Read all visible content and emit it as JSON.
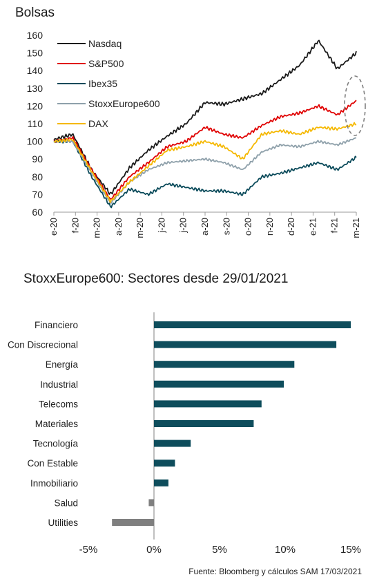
{
  "title_top": "Bolsas",
  "title_bottom": "StoxxEurope600: Sectores desde 29/01/2021",
  "source": "Fuente: Bloomberg y cálculos SAM 17/03/2021",
  "chart_data": [
    {
      "type": "line",
      "title": "Bolsas",
      "ylim": [
        60,
        160
      ],
      "yticks": [
        60,
        70,
        80,
        90,
        100,
        110,
        120,
        130,
        140,
        150,
        160
      ],
      "x_tick_labels": [
        "e-20",
        "f-20",
        "m-20",
        "a-20",
        "m-20",
        "j-20",
        "j-20",
        "a-20",
        "s-20",
        "o-20",
        "n-20",
        "d-20",
        "e-21",
        "f-21",
        "m-21"
      ],
      "legend_position": "top-left",
      "x": [
        "e-20",
        "f-20",
        "m-20",
        "m-20 mid",
        "a-20",
        "m-20",
        "j-20",
        "j-20",
        "a-20",
        "s-20",
        "o-20",
        "n-20",
        "d-20",
        "e-21",
        "f-21",
        "f-21 end",
        "m-21"
      ],
      "series": [
        {
          "name": "Nasdaq",
          "color": "#1a1a1a",
          "values": [
            101,
            104,
            84,
            70,
            85,
            95,
            103,
            110,
            122,
            121,
            124,
            127,
            135,
            143,
            157,
            141,
            150
          ]
        },
        {
          "name": "S&P500",
          "color": "#e00000",
          "values": [
            100,
            102,
            84,
            67,
            80,
            88,
            97,
            100,
            108,
            104,
            102,
            109,
            114,
            116,
            120,
            115,
            123
          ]
        },
        {
          "name": "Ibex35",
          "color": "#0a4a5a",
          "values": [
            100,
            100,
            80,
            63,
            73,
            70,
            76,
            74,
            72,
            72,
            70,
            80,
            82,
            85,
            88,
            84,
            91
          ]
        },
        {
          "name": "StoxxEurope600",
          "color": "#8ea0aa",
          "values": [
            100,
            100,
            82,
            65,
            77,
            84,
            88,
            89,
            90,
            88,
            84,
            94,
            98,
            97,
            100,
            98,
            102
          ]
        },
        {
          "name": "DAX",
          "color": "#f5b800",
          "values": [
            100,
            101,
            83,
            66,
            77,
            86,
            95,
            97,
            100,
            97,
            90,
            104,
            106,
            104,
            108,
            107,
            110
          ]
        }
      ]
    },
    {
      "type": "bar",
      "orientation": "horizontal",
      "title": "StoxxEurope600: Sectores desde 29/01/2021",
      "categories": [
        "Financiero",
        "Con Discrecional",
        "Energía",
        "Industrial",
        "Telecoms",
        "Materiales",
        "Tecnología",
        "Con Estable",
        "Inmobiliario",
        "Salud",
        "Utilities"
      ],
      "values": [
        15.0,
        13.9,
        10.7,
        9.9,
        8.2,
        7.6,
        2.8,
        1.6,
        1.1,
        -0.4,
        -3.2
      ],
      "xlim": [
        -5,
        15
      ],
      "xticks": [
        -5,
        0,
        5,
        10,
        15
      ],
      "xtick_labels": [
        "-5%",
        "0%",
        "5%",
        "10%",
        "15%"
      ],
      "positive_color": "#0e4d5c",
      "negative_color": "#7f7f7f"
    }
  ]
}
